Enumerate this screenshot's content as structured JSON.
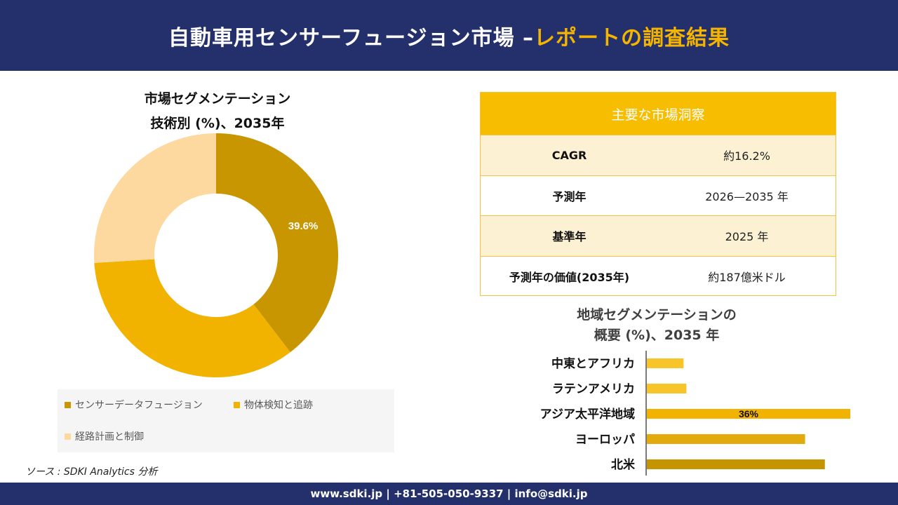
{
  "header": {
    "title_main": "自動車用センサーフュージョン市場 –",
    "title_accent": "レポートの調査結果"
  },
  "segment_chart": {
    "title_line1": "市場セグメンテーション",
    "title_line2": "技術別 (%)、2035年"
  },
  "insights": {
    "heading": "主要な市場洞察",
    "rows": [
      {
        "key": "CAGR",
        "value": "約16.2%"
      },
      {
        "key": "予測年",
        "value": "2026—2035 年"
      },
      {
        "key": "基準年",
        "value": "2025 年"
      },
      {
        "key": "予測年の価値(2035年)",
        "value": "約187億米ドル"
      }
    ]
  },
  "region_chart": {
    "title_line1": "地域セグメンテーションの",
    "title_line2": "概要 (%)、2035 年"
  },
  "source": "ソース : SDKI Analytics 分析",
  "footer": "www.sdki.jp | +81-505-050-9337 | info@sdki.jp",
  "colors": {
    "navy": "#23306b",
    "accent": "#f5b400",
    "sensor_fusion": "#c89600",
    "object_detection": "#f2b300",
    "path_planning": "#fdd9a0",
    "bar_light": "#f7c52a",
    "bar_mid": "#e2aa0c",
    "bar_dark": "#c69400"
  },
  "chart_data": [
    {
      "type": "pie",
      "variant": "donut",
      "labels": [
        "センサーデータフュージョン",
        "物体検知と追跡",
        "経路計画と制御"
      ],
      "values": [
        39.6,
        34.4,
        26.0
      ],
      "data_labels": [
        "39.6%",
        "",
        ""
      ],
      "legend_position": "bottom"
    },
    {
      "type": "bar",
      "orientation": "horizontal",
      "categories": [
        "中東とアフリカ",
        "ラテンアメリカ",
        "アジア太平洋地域",
        "ヨーロッパ",
        "北米"
      ],
      "values": [
        6.5,
        7,
        36,
        28,
        31.5
      ],
      "data_labels": [
        "",
        "",
        "36%",
        "",
        ""
      ]
    }
  ]
}
